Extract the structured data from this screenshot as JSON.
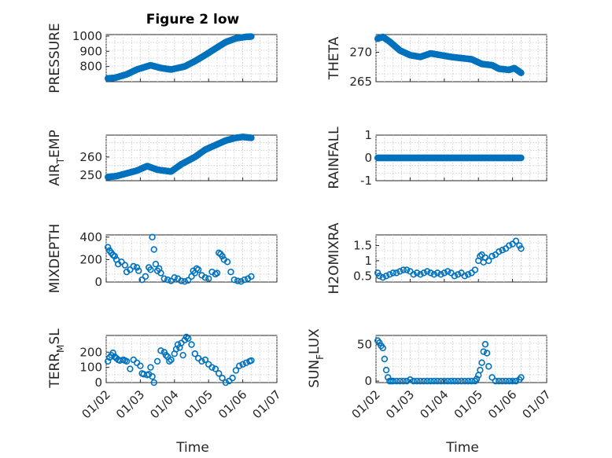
{
  "chart_data": {
    "type": "scatter",
    "title": "Figure 2 low",
    "marker_color": "#0072BD",
    "time_tick_labels": [
      "01/02",
      "01/03",
      "01/04",
      "01/05",
      "01/06",
      "01/07"
    ],
    "xlabel": "Time",
    "xlim": [
      0,
      5
    ],
    "panels": [
      {
        "id": "pressure",
        "ylabel": "PRESSURE",
        "ylim": [
          700,
          1010
        ],
        "yticks": [
          800,
          900,
          1000
        ],
        "ytick_labels": [
          "800",
          "900",
          "1000"
        ],
        "x": [
          0.05,
          0.25,
          0.6,
          0.9,
          1.3,
          1.6,
          1.9,
          2.3,
          2.6,
          2.9,
          3.2,
          3.5,
          3.8,
          4.1,
          4.25
        ],
        "y": [
          722,
          725,
          748,
          780,
          808,
          790,
          780,
          800,
          835,
          875,
          918,
          960,
          985,
          995,
          997
        ],
        "dense": true
      },
      {
        "id": "theta",
        "ylabel": "THETA",
        "ylim": [
          265,
          273
        ],
        "yticks": [
          265,
          270
        ],
        "ytick_labels": [
          "265",
          "270"
        ],
        "x": [
          0.05,
          0.2,
          0.4,
          0.7,
          1.0,
          1.3,
          1.6,
          1.9,
          2.2,
          2.5,
          2.8,
          3.1,
          3.4,
          3.6,
          3.9,
          4.05,
          4.25
        ],
        "y": [
          272.3,
          272.6,
          271.8,
          270.3,
          269.5,
          269.2,
          269.8,
          269.5,
          269.2,
          269.0,
          268.8,
          268.0,
          267.8,
          267.2,
          267.0,
          267.3,
          266.5
        ],
        "dense": true
      },
      {
        "id": "air_temp",
        "ylabel": "AIR_TEMP",
        "ylim": [
          247,
          272
        ],
        "yticks": [
          250,
          260
        ],
        "ytick_labels": [
          "250",
          "260"
        ],
        "x": [
          0.05,
          0.3,
          0.6,
          0.9,
          1.2,
          1.5,
          1.9,
          2.2,
          2.6,
          2.9,
          3.2,
          3.5,
          3.8,
          4.0,
          4.25
        ],
        "y": [
          249,
          249.5,
          251,
          252.5,
          255,
          253,
          252,
          256,
          260,
          264,
          266.5,
          269,
          270.5,
          271,
          270.5
        ],
        "dense": true
      },
      {
        "id": "rainfall",
        "ylabel": "RAINFALL",
        "ylim": [
          -1,
          1
        ],
        "yticks": [
          -1,
          0,
          1
        ],
        "ytick_labels": [
          "-1",
          "0",
          "1"
        ],
        "x": [
          0.05,
          4.25
        ],
        "y": [
          0,
          0
        ],
        "dense": true
      },
      {
        "id": "mixdepth",
        "ylabel": "MIXDEPTH",
        "ylim": [
          0,
          420
        ],
        "yticks": [
          0,
          200,
          400
        ],
        "ytick_labels": [
          "0",
          "200",
          "400"
        ],
        "x": [
          0.05,
          0.1,
          0.15,
          0.2,
          0.25,
          0.3,
          0.35,
          0.45,
          0.55,
          0.6,
          0.7,
          0.8,
          0.9,
          0.95,
          1.05,
          1.15,
          1.25,
          1.3,
          1.35,
          1.4,
          1.45,
          1.5,
          1.55,
          1.6,
          1.7,
          1.8,
          1.9,
          2.0,
          2.1,
          2.2,
          2.3,
          2.4,
          2.5,
          2.55,
          2.6,
          2.65,
          2.7,
          2.8,
          2.9,
          3.0,
          3.1,
          3.2,
          3.25,
          3.3,
          3.35,
          3.4,
          3.45,
          3.55,
          3.65,
          3.75,
          3.85,
          3.95,
          4.05,
          4.15,
          4.25
        ],
        "y": [
          310,
          280,
          260,
          240,
          230,
          200,
          160,
          180,
          150,
          90,
          110,
          140,
          130,
          100,
          20,
          50,
          130,
          110,
          400,
          290,
          160,
          100,
          120,
          80,
          30,
          20,
          10,
          40,
          30,
          10,
          5,
          15,
          50,
          100,
          80,
          120,
          110,
          60,
          40,
          30,
          90,
          70,
          80,
          260,
          250,
          230,
          200,
          180,
          90,
          20,
          10,
          5,
          20,
          30,
          50
        ]
      },
      {
        "id": "h2omixra",
        "ylabel": "H2OMIXRA",
        "ylim": [
          0.3,
          1.85
        ],
        "yticks": [
          0.5,
          1,
          1.5
        ],
        "ytick_labels": [
          "0.5",
          "1",
          "1.5"
        ],
        "x": [
          0.05,
          0.1,
          0.2,
          0.3,
          0.4,
          0.5,
          0.6,
          0.7,
          0.8,
          0.9,
          1.0,
          1.1,
          1.2,
          1.3,
          1.4,
          1.5,
          1.6,
          1.7,
          1.8,
          1.9,
          2.0,
          2.1,
          2.2,
          2.3,
          2.4,
          2.5,
          2.6,
          2.7,
          2.8,
          2.9,
          3.0,
          3.05,
          3.1,
          3.15,
          3.2,
          3.3,
          3.4,
          3.5,
          3.6,
          3.7,
          3.8,
          3.9,
          4.0,
          4.1,
          4.2,
          4.25
        ],
        "y": [
          0.6,
          0.5,
          0.45,
          0.5,
          0.55,
          0.6,
          0.6,
          0.65,
          0.7,
          0.7,
          0.65,
          0.55,
          0.6,
          0.55,
          0.6,
          0.65,
          0.6,
          0.55,
          0.6,
          0.55,
          0.6,
          0.65,
          0.6,
          0.5,
          0.55,
          0.6,
          0.5,
          0.55,
          0.6,
          0.7,
          1.0,
          1.15,
          1.2,
          0.95,
          1.1,
          1.0,
          1.15,
          1.2,
          1.3,
          1.35,
          1.4,
          1.5,
          1.55,
          1.65,
          1.5,
          1.4
        ]
      },
      {
        "id": "terr_msl",
        "ylabel": "TERR_MSL",
        "ylim": [
          0,
          310
        ],
        "yticks": [
          0,
          100,
          200
        ],
        "ytick_labels": [
          "0",
          "100",
          "200"
        ],
        "x": [
          0.05,
          0.1,
          0.15,
          0.2,
          0.25,
          0.3,
          0.35,
          0.4,
          0.5,
          0.55,
          0.6,
          0.7,
          0.8,
          0.9,
          1.0,
          1.05,
          1.1,
          1.2,
          1.25,
          1.3,
          1.35,
          1.4,
          1.5,
          1.6,
          1.7,
          1.75,
          1.8,
          1.85,
          1.9,
          2.0,
          2.05,
          2.1,
          2.15,
          2.2,
          2.25,
          2.3,
          2.35,
          2.4,
          2.5,
          2.6,
          2.7,
          2.8,
          2.9,
          3.0,
          3.1,
          3.2,
          3.3,
          3.4,
          3.5,
          3.6,
          3.7,
          3.8,
          3.9,
          4.0,
          4.1,
          4.2,
          4.25
        ],
        "y": [
          140,
          165,
          180,
          195,
          170,
          160,
          150,
          145,
          150,
          145,
          140,
          90,
          150,
          130,
          110,
          60,
          55,
          50,
          55,
          100,
          40,
          0,
          140,
          210,
          200,
          180,
          170,
          140,
          150,
          190,
          220,
          250,
          230,
          260,
          180,
          280,
          300,
          290,
          250,
          190,
          160,
          140,
          150,
          120,
          100,
          90,
          60,
          30,
          0,
          10,
          30,
          80,
          110,
          120,
          130,
          140,
          145
        ]
      },
      {
        "id": "sun_flux",
        "ylabel": "SUN_FLUX",
        "ylim": [
          -2,
          62
        ],
        "yticks": [
          0,
          50
        ],
        "ytick_labels": [
          "0",
          "50"
        ],
        "x": [
          0.05,
          0.1,
          0.15,
          0.2,
          0.25,
          0.3,
          0.35,
          0.4,
          0.45,
          0.5,
          0.6,
          0.7,
          0.8,
          0.9,
          1.0,
          1.1,
          1.2,
          1.3,
          1.4,
          1.5,
          1.6,
          1.7,
          1.8,
          1.9,
          2.0,
          2.1,
          2.2,
          2.3,
          2.4,
          2.5,
          2.6,
          2.7,
          2.8,
          2.9,
          2.95,
          3.0,
          3.05,
          3.1,
          3.15,
          3.2,
          3.25,
          3.3,
          3.4,
          3.5,
          3.6,
          3.7,
          3.8,
          3.9,
          4.0,
          4.1,
          4.2,
          4.25
        ],
        "y": [
          55,
          52,
          48,
          45,
          30,
          15,
          5,
          0,
          0,
          0,
          0,
          0,
          0,
          0,
          2,
          0,
          0,
          0,
          0,
          0,
          0,
          0,
          0,
          0,
          0,
          0,
          0,
          0,
          0,
          0,
          0,
          0,
          0,
          0,
          3,
          8,
          15,
          25,
          40,
          50,
          38,
          20,
          5,
          0,
          0,
          0,
          0,
          0,
          0,
          0,
          2,
          5
        ]
      }
    ]
  }
}
